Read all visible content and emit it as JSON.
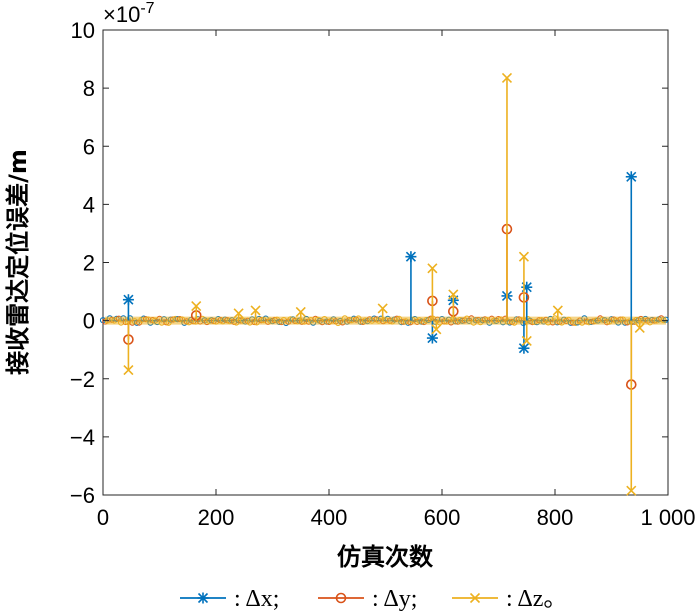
{
  "chart_data": {
    "type": "line",
    "title": "",
    "xlabel": "仿真次数",
    "ylabel": "接收雷达定位误差/m",
    "exponent_label": "×10",
    "exponent_power": "-7",
    "xlim": [
      0,
      1000
    ],
    "ylim": [
      -6,
      10
    ],
    "xticks": [
      0,
      200,
      400,
      600,
      800,
      1000
    ],
    "xtick_labels": [
      "0",
      "200",
      "400",
      "600",
      "800",
      "1 000"
    ],
    "yticks": [
      -6,
      -4,
      -2,
      0,
      2,
      4,
      6,
      8,
      10
    ],
    "ytick_labels": [
      "−6",
      "−4",
      "−2",
      "0",
      "2",
      "4",
      "6",
      "8",
      "10"
    ],
    "grid": false,
    "legend_position": "bottom",
    "series": [
      {
        "name": ": Δx;",
        "color": "#0072BD",
        "marker": "asterisk",
        "spikes": [
          [
            45,
            0.72
          ],
          [
            545,
            2.2
          ],
          [
            583,
            -0.6
          ],
          [
            620,
            0.7
          ],
          [
            715,
            0.85
          ],
          [
            745,
            -0.95
          ],
          [
            750,
            1.15
          ],
          [
            935,
            4.95
          ]
        ]
      },
      {
        "name": ": Δy;",
        "color": "#D95319",
        "marker": "circle",
        "spikes": [
          [
            45,
            -0.65
          ],
          [
            165,
            0.18
          ],
          [
            583,
            0.68
          ],
          [
            620,
            0.32
          ],
          [
            715,
            3.15
          ],
          [
            745,
            0.8
          ],
          [
            935,
            -2.2
          ]
        ]
      },
      {
        "name": ": Δz。",
        "color": "#EDB120",
        "marker": "cross",
        "spikes": [
          [
            45,
            -1.7
          ],
          [
            165,
            0.5
          ],
          [
            240,
            0.25
          ],
          [
            270,
            0.35
          ],
          [
            350,
            0.3
          ],
          [
            495,
            0.42
          ],
          [
            583,
            1.8
          ],
          [
            590,
            -0.3
          ],
          [
            620,
            0.9
          ],
          [
            715,
            8.35
          ],
          [
            745,
            2.2
          ],
          [
            750,
            -0.7
          ],
          [
            805,
            0.35
          ],
          [
            935,
            -5.85
          ],
          [
            950,
            -0.25
          ]
        ]
      }
    ]
  }
}
